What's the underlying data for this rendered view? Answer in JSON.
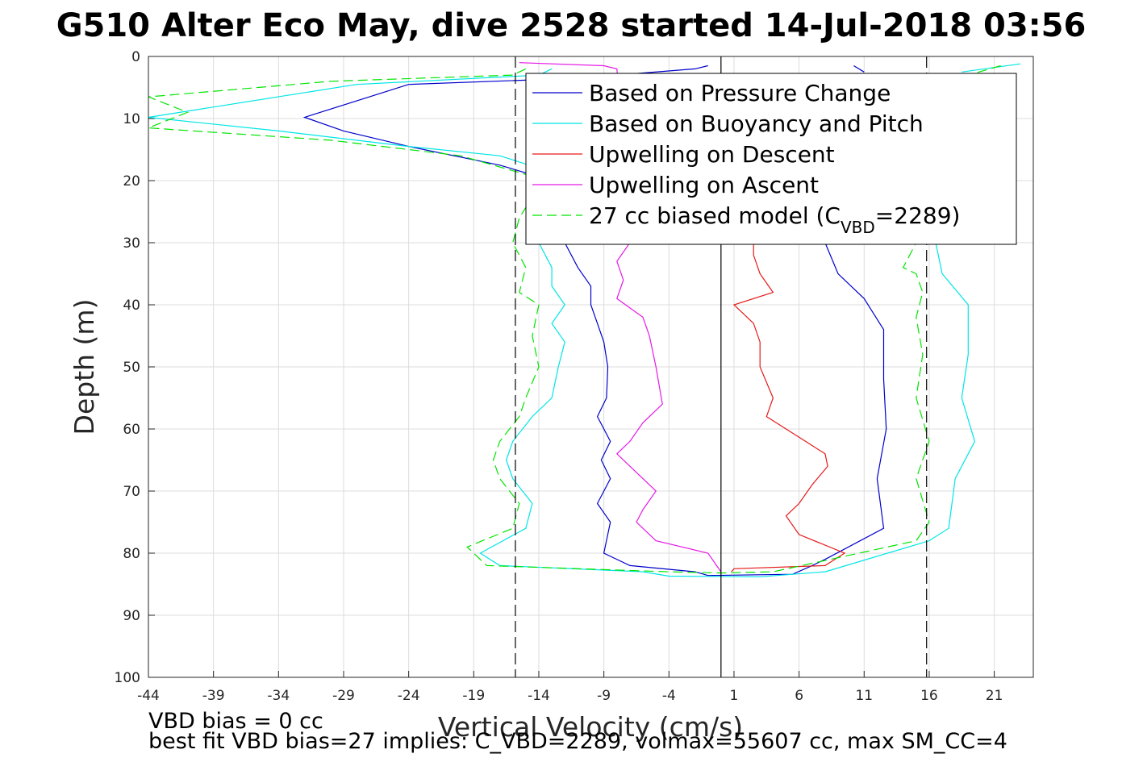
{
  "chart_data": {
    "type": "line",
    "title": "G510 Alter Eco May, dive 2528 started 14-Jul-2018 03:56",
    "xlabel": "Vertical Velocity (cm/s)",
    "ylabel": "Depth (m)",
    "xlim": [
      -44,
      24
    ],
    "ylim": [
      0,
      100
    ],
    "y_reversed": true,
    "xticks": [
      "-44",
      "-39",
      "-34",
      "-29",
      "-24",
      "-19",
      "-14",
      "-9",
      "-4",
      "1",
      "6",
      "11",
      "16",
      "21"
    ],
    "yticks": [
      "0",
      "10",
      "20",
      "30",
      "40",
      "50",
      "60",
      "70",
      "80",
      "90",
      "100"
    ],
    "grid": true,
    "legend_position": "top-right",
    "vlines": [
      {
        "x": -15.8,
        "style": "dashed",
        "color": "#000000"
      },
      {
        "x": 15.8,
        "style": "dashed",
        "color": "#000000"
      },
      {
        "x": 0,
        "style": "solid",
        "color": "#000000"
      }
    ],
    "series": [
      {
        "name": "Based on Pressure Change",
        "color": "#0000cc",
        "dash": false,
        "points": [
          [
            -1,
            1.5
          ],
          [
            -2,
            2
          ],
          [
            -11,
            3.5
          ],
          [
            -24,
            4.5
          ],
          [
            -32,
            9.8
          ],
          [
            -29,
            12
          ],
          [
            -24,
            14.5
          ],
          [
            -17,
            17.5
          ],
          [
            -13,
            20
          ],
          [
            -11,
            25
          ],
          [
            -12,
            30
          ],
          [
            -11,
            34
          ],
          [
            -10,
            37
          ],
          [
            -10,
            40
          ],
          [
            -9.5,
            43
          ],
          [
            -9,
            46
          ],
          [
            -8.7,
            50
          ],
          [
            -8.8,
            55
          ],
          [
            -9.5,
            58
          ],
          [
            -8.5,
            62
          ],
          [
            -9.2,
            65
          ],
          [
            -8.5,
            68
          ],
          [
            -9.5,
            72
          ],
          [
            -8.5,
            75
          ],
          [
            -9,
            80
          ],
          [
            -7,
            82
          ],
          [
            -2,
            83
          ],
          [
            -1,
            83.6
          ],
          [
            5.5,
            83.4
          ],
          [
            7,
            82
          ],
          [
            8,
            81
          ],
          [
            12.5,
            76
          ],
          [
            12,
            68
          ],
          [
            12.7,
            60
          ],
          [
            12.5,
            52
          ],
          [
            12.5,
            44
          ],
          [
            11,
            39
          ],
          [
            9,
            35
          ],
          [
            8,
            30
          ]
        ],
        "points2": [
          [
            10.2,
            1.5
          ],
          [
            11,
            2.5
          ]
        ]
      },
      {
        "name": "Based on Buoyancy and Pitch",
        "color": "#00e5e5",
        "dash": false,
        "points": [
          [
            -13,
            2
          ],
          [
            -14,
            3
          ],
          [
            -28,
            4.5
          ],
          [
            -44,
            9.8
          ],
          [
            -34,
            12
          ],
          [
            -24,
            14.5
          ],
          [
            -17,
            16
          ],
          [
            -14,
            18
          ],
          [
            -13,
            20
          ],
          [
            -13.5,
            25
          ],
          [
            -14,
            30
          ],
          [
            -13,
            34
          ],
          [
            -13,
            37
          ],
          [
            -12,
            40
          ],
          [
            -13,
            43
          ],
          [
            -12,
            46
          ],
          [
            -12.5,
            50
          ],
          [
            -13,
            55
          ],
          [
            -14.5,
            58
          ],
          [
            -16,
            62
          ],
          [
            -16.5,
            65
          ],
          [
            -16,
            68
          ],
          [
            -14.5,
            72
          ],
          [
            -15,
            76
          ],
          [
            -18.5,
            80
          ],
          [
            -17,
            82
          ],
          [
            -6,
            83
          ],
          [
            -4,
            83.7
          ],
          [
            3,
            83.8
          ],
          [
            8,
            83
          ],
          [
            16,
            78
          ],
          [
            17.5,
            76
          ],
          [
            18,
            68
          ],
          [
            19.5,
            62
          ],
          [
            18.5,
            55
          ],
          [
            19,
            48
          ],
          [
            19,
            40
          ],
          [
            17,
            35
          ],
          [
            16.5,
            30
          ]
        ],
        "points2": [
          [
            23,
            1.2
          ],
          [
            18.5,
            2.5
          ]
        ]
      },
      {
        "name": "Upwelling on Descent",
        "color": "#e51a1a",
        "dash": false,
        "points": [
          [
            2.5,
            30
          ],
          [
            2.5,
            32
          ],
          [
            3,
            35
          ],
          [
            4,
            38
          ],
          [
            1,
            40
          ],
          [
            2.5,
            43
          ],
          [
            3,
            46
          ],
          [
            3,
            50
          ],
          [
            4,
            55
          ],
          [
            3.5,
            58
          ],
          [
            6.5,
            62
          ],
          [
            8,
            64
          ],
          [
            8.2,
            66
          ],
          [
            7,
            69
          ],
          [
            6,
            72
          ],
          [
            5,
            74
          ],
          [
            6,
            77
          ],
          [
            9.5,
            80
          ],
          [
            8,
            82
          ],
          [
            1,
            82.5
          ],
          [
            0.8,
            83
          ]
        ],
        "points2": []
      },
      {
        "name": "Upwelling on Ascent",
        "color": "#e51ae5",
        "dash": false,
        "points": [
          [
            -15.5,
            1
          ],
          [
            -9,
            1.5
          ],
          [
            -8,
            2
          ],
          [
            -7,
            30
          ],
          [
            -8,
            33
          ],
          [
            -7.5,
            36
          ],
          [
            -8,
            39
          ],
          [
            -6,
            42
          ],
          [
            -5.5,
            45
          ],
          [
            -5,
            50
          ],
          [
            -4.5,
            56
          ],
          [
            -6,
            59
          ],
          [
            -7,
            62
          ],
          [
            -8,
            64
          ],
          [
            -6.5,
            67
          ],
          [
            -5,
            70
          ],
          [
            -6,
            73
          ],
          [
            -6.5,
            75
          ],
          [
            -5,
            78
          ],
          [
            -1,
            80
          ],
          [
            0,
            83
          ]
        ],
        "points2": []
      },
      {
        "name": "27 cc biased model (C",
        "name_sub": "VBD",
        "name_tail": "=2289)",
        "color": "#00e500",
        "dash": true,
        "points": [
          [
            -15,
            2
          ],
          [
            -16,
            3
          ],
          [
            -30,
            4
          ],
          [
            -44,
            6.5
          ],
          [
            -41,
            9
          ],
          [
            -44,
            11.5
          ],
          [
            -30,
            13.5
          ],
          [
            -20,
            16
          ],
          [
            -15,
            19
          ],
          [
            -14,
            21
          ],
          [
            -15.5,
            26
          ],
          [
            -16,
            30
          ],
          [
            -15,
            34
          ],
          [
            -15.5,
            38
          ],
          [
            -14,
            40
          ],
          [
            -14.5,
            45
          ],
          [
            -14,
            50
          ],
          [
            -15,
            55
          ],
          [
            -15.5,
            58
          ],
          [
            -17,
            62
          ],
          [
            -17.5,
            65
          ],
          [
            -17,
            68
          ],
          [
            -15.5,
            72
          ],
          [
            -16,
            76
          ],
          [
            -19.5,
            79
          ],
          [
            -18,
            82
          ],
          [
            -4,
            83
          ],
          [
            0,
            83.2
          ],
          [
            4,
            83
          ],
          [
            15,
            78
          ],
          [
            16,
            75
          ],
          [
            15,
            68
          ],
          [
            16,
            62
          ],
          [
            15,
            55
          ],
          [
            15.5,
            48
          ],
          [
            15,
            42
          ],
          [
            15.5,
            38
          ],
          [
            15,
            35
          ],
          [
            14,
            34
          ],
          [
            15,
            30
          ]
        ],
        "points2": [
          [
            21.5,
            1.5
          ],
          [
            19,
            3
          ]
        ]
      }
    ]
  },
  "footnotes": [
    "VBD bias = 0 cc",
    "best fit VBD bias=27 implies: C_VBD=2289, volmax=55607 cc, max SM_CC=4"
  ],
  "colors": {
    "grid": "#dcdcdc",
    "axis": "#262626"
  }
}
